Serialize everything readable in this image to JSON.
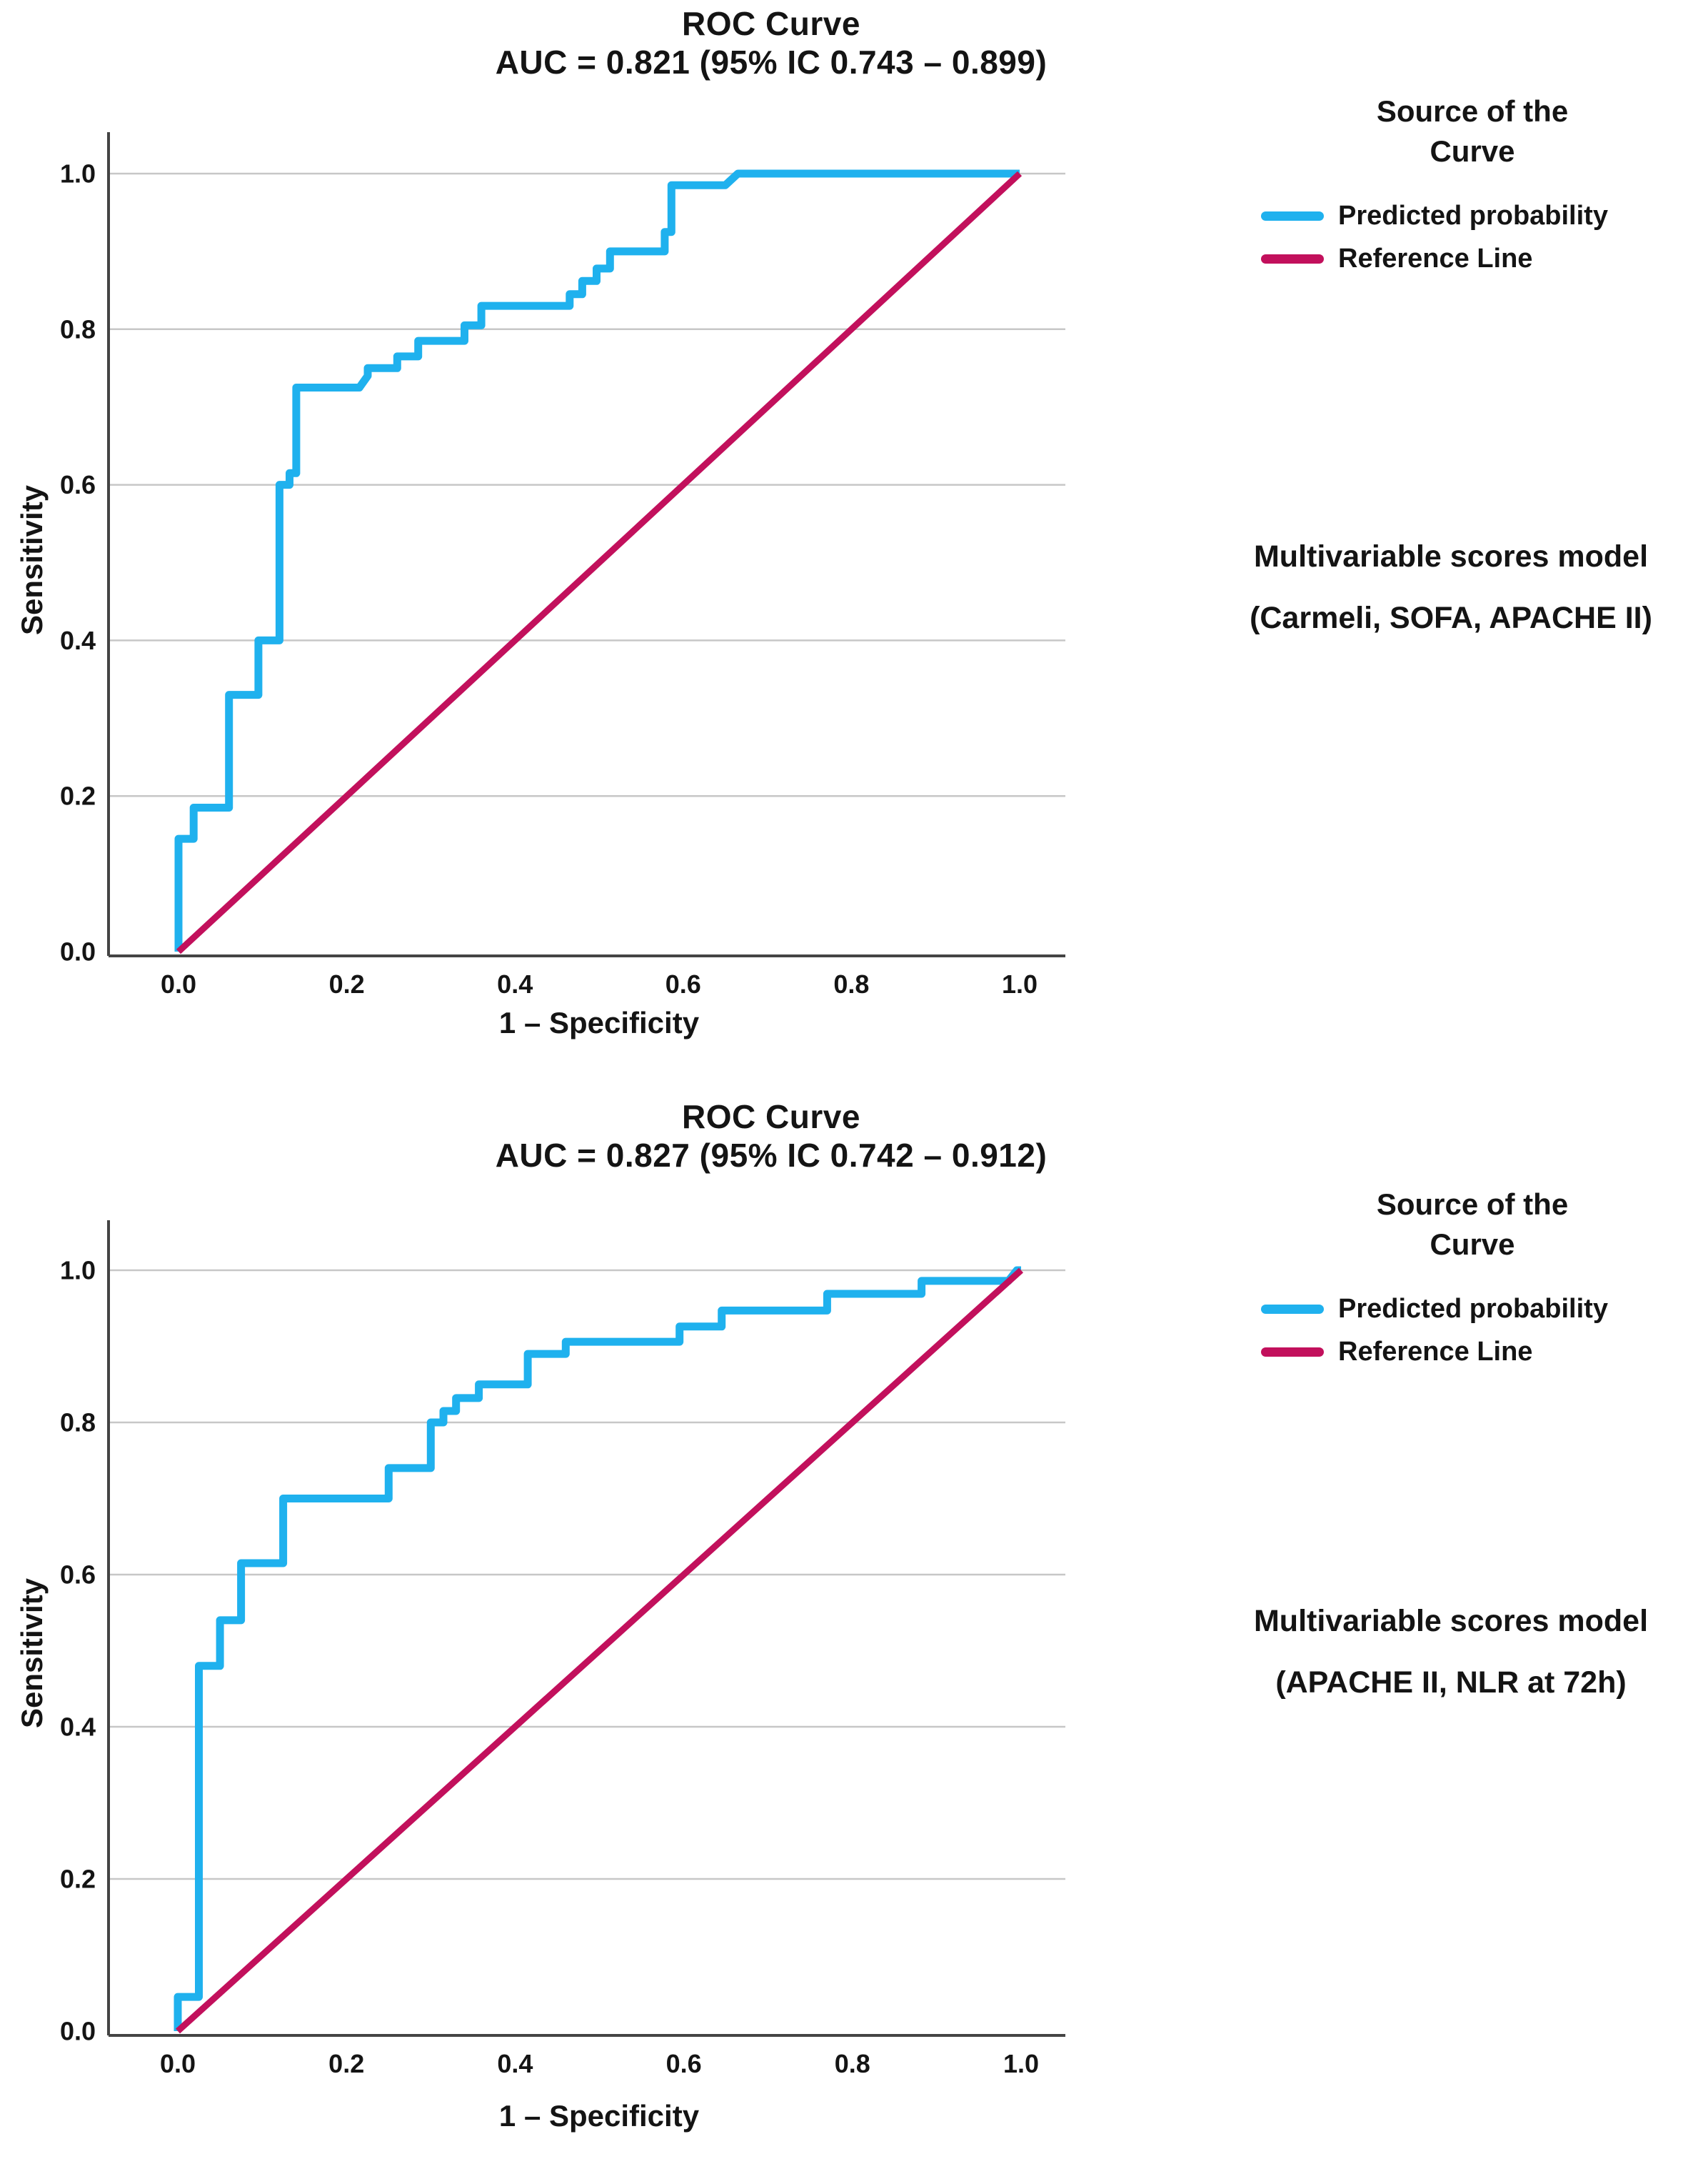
{
  "colors": {
    "curve": "#1FB1EE",
    "reference": "#C2105C",
    "grid": "#C7C7C7",
    "axis": "#444444",
    "text": "#141414"
  },
  "chart_data": [
    {
      "type": "line",
      "title": "ROC Curve",
      "subtitle": "AUC = 0.821 (95% IC 0.743 – 0.899)",
      "xlabel": "1 – Specificity",
      "ylabel": "Sensitivity",
      "xlim": [
        0.0,
        1.0
      ],
      "ylim": [
        0.0,
        1.0
      ],
      "x_ticks": [
        0.0,
        0.2,
        0.4,
        0.6,
        0.8,
        1.0
      ],
      "y_ticks": [
        0.0,
        0.2,
        0.4,
        0.6,
        0.8,
        1.0
      ],
      "x_tick_labels": [
        "0.0",
        "0.2",
        "0.4",
        "0.6",
        "0.8",
        "1.0"
      ],
      "y_tick_labels": [
        "0.0",
        "0.2",
        "0.4",
        "0.6",
        "0.8",
        "1.0"
      ],
      "grid": "horizontal-only",
      "legend_position": "outside-top-right",
      "legend_title_lines": [
        "Source of the",
        "Curve"
      ],
      "series": [
        {
          "name": "Predicted probability",
          "color": "#1FB1EE",
          "style": "step",
          "points": [
            [
              0.0,
              0.0
            ],
            [
              0.0,
              0.145
            ],
            [
              0.018,
              0.145
            ],
            [
              0.018,
              0.185
            ],
            [
              0.06,
              0.185
            ],
            [
              0.06,
              0.33
            ],
            [
              0.095,
              0.33
            ],
            [
              0.095,
              0.4
            ],
            [
              0.12,
              0.4
            ],
            [
              0.12,
              0.6
            ],
            [
              0.132,
              0.6
            ],
            [
              0.132,
              0.615
            ],
            [
              0.14,
              0.615
            ],
            [
              0.14,
              0.725
            ],
            [
              0.215,
              0.725
            ],
            [
              0.225,
              0.74
            ],
            [
              0.225,
              0.75
            ],
            [
              0.26,
              0.75
            ],
            [
              0.26,
              0.765
            ],
            [
              0.285,
              0.765
            ],
            [
              0.285,
              0.785
            ],
            [
              0.34,
              0.785
            ],
            [
              0.34,
              0.805
            ],
            [
              0.36,
              0.805
            ],
            [
              0.36,
              0.83
            ],
            [
              0.465,
              0.83
            ],
            [
              0.465,
              0.845
            ],
            [
              0.48,
              0.845
            ],
            [
              0.48,
              0.862
            ],
            [
              0.497,
              0.862
            ],
            [
              0.497,
              0.878
            ],
            [
              0.513,
              0.878
            ],
            [
              0.513,
              0.9
            ],
            [
              0.578,
              0.9
            ],
            [
              0.578,
              0.925
            ],
            [
              0.586,
              0.925
            ],
            [
              0.586,
              0.985
            ],
            [
              0.65,
              0.985
            ],
            [
              0.665,
              1.0
            ],
            [
              1.0,
              1.0
            ]
          ]
        },
        {
          "name": "Reference Line",
          "color": "#C2105C",
          "style": "straight",
          "points": [
            [
              0.0,
              0.0
            ],
            [
              1.0,
              1.0
            ]
          ]
        }
      ],
      "annotation_lines": [
        "Multivariable scores model",
        "(Carmeli, SOFA, APACHE II)"
      ]
    },
    {
      "type": "line",
      "title": "ROC Curve",
      "subtitle": "AUC = 0.827 (95% IC 0.742 – 0.912)",
      "xlabel": "1 – Specificity",
      "ylabel": "Sensitivity",
      "xlim": [
        0.0,
        1.0
      ],
      "ylim": [
        0.0,
        1.0
      ],
      "x_ticks": [
        0.0,
        0.2,
        0.4,
        0.6,
        0.8,
        1.0
      ],
      "y_ticks": [
        0.0,
        0.2,
        0.4,
        0.6,
        0.8,
        1.0
      ],
      "x_tick_labels": [
        "0.0",
        "0.2",
        "0.4",
        "0.6",
        "0.8",
        "1.0"
      ],
      "y_tick_labels": [
        "0.0",
        "0.2",
        "0.4",
        "0.6",
        "0.8",
        "1.0"
      ],
      "grid": "horizontal-only",
      "legend_position": "outside-top-right",
      "legend_title_lines": [
        "Source of the",
        "Curve"
      ],
      "series": [
        {
          "name": "Predicted probability",
          "color": "#1FB1EE",
          "style": "step",
          "points": [
            [
              0.0,
              0.0
            ],
            [
              0.0,
              0.045
            ],
            [
              0.025,
              0.045
            ],
            [
              0.025,
              0.48
            ],
            [
              0.05,
              0.48
            ],
            [
              0.05,
              0.54
            ],
            [
              0.075,
              0.54
            ],
            [
              0.075,
              0.615
            ],
            [
              0.125,
              0.615
            ],
            [
              0.125,
              0.7
            ],
            [
              0.25,
              0.7
            ],
            [
              0.25,
              0.74
            ],
            [
              0.3,
              0.74
            ],
            [
              0.3,
              0.8
            ],
            [
              0.315,
              0.8
            ],
            [
              0.315,
              0.815
            ],
            [
              0.33,
              0.815
            ],
            [
              0.33,
              0.832
            ],
            [
              0.357,
              0.832
            ],
            [
              0.357,
              0.85
            ],
            [
              0.415,
              0.85
            ],
            [
              0.415,
              0.89
            ],
            [
              0.46,
              0.89
            ],
            [
              0.46,
              0.906
            ],
            [
              0.595,
              0.906
            ],
            [
              0.595,
              0.926
            ],
            [
              0.645,
              0.926
            ],
            [
              0.645,
              0.947
            ],
            [
              0.77,
              0.947
            ],
            [
              0.77,
              0.969
            ],
            [
              0.882,
              0.969
            ],
            [
              0.882,
              0.986
            ],
            [
              0.985,
              0.986
            ],
            [
              0.995,
              1.0
            ],
            [
              1.0,
              1.0
            ]
          ]
        },
        {
          "name": "Reference Line",
          "color": "#C2105C",
          "style": "straight",
          "points": [
            [
              0.0,
              0.0
            ],
            [
              1.0,
              1.0
            ]
          ]
        }
      ],
      "annotation_lines": [
        "Multivariable scores model",
        "(APACHE II, NLR at 72h)"
      ]
    }
  ]
}
